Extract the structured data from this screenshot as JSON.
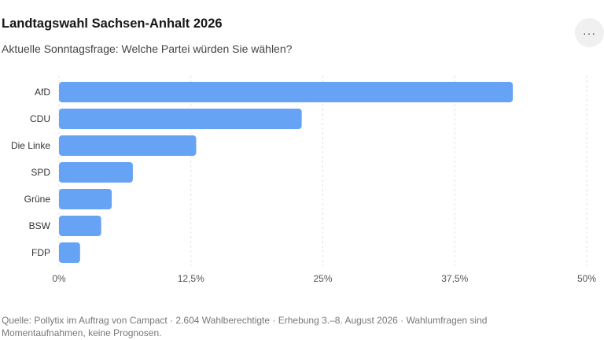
{
  "header": {
    "title": "Landtagswahl Sachsen-Anhalt 2026",
    "subtitle": "Aktuelle Sonntagsfrage: Welche Partei würden Sie wählen?",
    "more_label": "···"
  },
  "chart_data": {
    "type": "bar",
    "orientation": "horizontal",
    "title": "Landtagswahl Sachsen-Anhalt 2026",
    "subtitle": "Aktuelle Sonntagsfrage: Welche Partei würden Sie wählen?",
    "categories": [
      "AfD",
      "CDU",
      "Die Linke",
      "SPD",
      "Grüne",
      "BSW",
      "FDP"
    ],
    "values": [
      43,
      23,
      13,
      7,
      5,
      4,
      2
    ],
    "xlim": [
      0,
      50
    ],
    "ticks": [
      0,
      12.5,
      25,
      37.5,
      50
    ],
    "tick_labels": [
      "0%",
      "12,5%",
      "25%",
      "37,5%",
      "50%"
    ],
    "bar_color": "#66a3f5",
    "grid": true,
    "legend": "none"
  },
  "footer": {
    "source": "Quelle: Pollytix im Auftrag von Campact · 2.604 Wahlberechtigte · Erhebung 3.–8. August 2026 · Wahlumfragen sind Momentaufnahmen, keine Prognosen."
  }
}
